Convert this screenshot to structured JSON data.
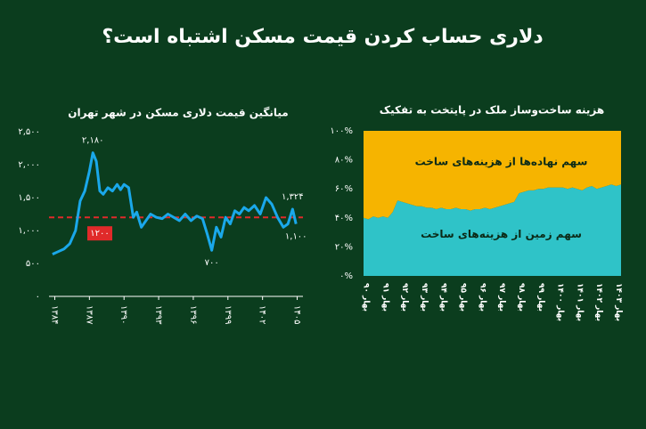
{
  "title": "دلاری حساب کردن قیمت مسکن اشتباه است؟",
  "chart_data": [
    {
      "type": "line",
      "title": "میانگین قیمت دلاری مسکن در شهر تهران",
      "x": [
        1383.8,
        1384.3,
        1384.8,
        1385.3,
        1385.8,
        1386.2,
        1386.6,
        1387.0,
        1387.3,
        1387.6,
        1387.9,
        1388.2,
        1388.6,
        1389.0,
        1389.4,
        1389.7,
        1390.0,
        1390.4,
        1390.8,
        1391.1,
        1391.5,
        1391.9,
        1392.3,
        1392.8,
        1393.3,
        1393.8,
        1394.3,
        1394.8,
        1395.3,
        1395.8,
        1396.3,
        1396.8,
        1397.2,
        1397.6,
        1398.0,
        1398.4,
        1398.8,
        1399.2,
        1399.6,
        1400.0,
        1400.4,
        1400.8,
        1401.3,
        1401.8,
        1402.3,
        1402.8,
        1403.3,
        1403.8,
        1404.2,
        1404.6,
        1404.9
      ],
      "series": [
        {
          "color": "#1aa8ea",
          "values": [
            640,
            680,
            720,
            800,
            1000,
            1450,
            1600,
            1900,
            2180,
            2050,
            1600,
            1550,
            1650,
            1600,
            1700,
            1620,
            1700,
            1650,
            1200,
            1280,
            1050,
            1150,
            1250,
            1200,
            1180,
            1250,
            1200,
            1150,
            1250,
            1150,
            1220,
            1180,
            950,
            700,
            1050,
            900,
            1200,
            1100,
            1300,
            1250,
            1350,
            1300,
            1380,
            1250,
            1500,
            1400,
            1200,
            1050,
            1100,
            1324,
            1100
          ]
        }
      ],
      "xlim": [
        1383.5,
        1405.5
      ],
      "xticks": [
        {
          "value": 1384,
          "label": "۱۳۸۴"
        },
        {
          "value": 1387,
          "label": "۱۳۸۷"
        },
        {
          "value": 1390,
          "label": "۱۳۹۰"
        },
        {
          "value": 1393,
          "label": "۱۳۹۳"
        },
        {
          "value": 1396,
          "label": "۱۳۹۶"
        },
        {
          "value": 1399,
          "label": "۱۳۹۹"
        },
        {
          "value": 1402,
          "label": "۱۴۰۲"
        },
        {
          "value": 1405,
          "label": "۱۴۰۵"
        }
      ],
      "ylim": [
        0,
        2500
      ],
      "yticks": [
        {
          "value": 0,
          "label": "۰"
        },
        {
          "value": 500,
          "label": "۵۰۰"
        },
        {
          "value": 1000,
          "label": "۱,۰۰۰"
        },
        {
          "value": 1500,
          "label": "۱,۵۰۰"
        },
        {
          "value": 2000,
          "label": "۲,۰۰۰"
        },
        {
          "value": 2500,
          "label": "۲,۵۰۰"
        }
      ],
      "reference_line": {
        "value": 1200,
        "label": "۱۲۰۰",
        "color": "#e02a2a"
      },
      "annotations": [
        {
          "text": "۲,۱۸۰",
          "x": 1387.3,
          "y": 2180,
          "side": "above"
        },
        {
          "text": "۷۰۰",
          "x": 1397.6,
          "y": 700,
          "side": "below"
        },
        {
          "text": "۱,۳۲۴",
          "x": 1404.6,
          "y": 1324,
          "side": "above"
        },
        {
          "text": "۱,۱۰۰",
          "x": 1404.9,
          "y": 1100,
          "side": "below"
        }
      ]
    },
    {
      "type": "area",
      "stacked": true,
      "title": "هزینه ساخت‌وساز ملک در پایتخت به تفکیک",
      "categories": [
        "بهار ۹۰",
        null,
        null,
        null,
        "بهار ۹۱",
        null,
        null,
        null,
        "بهار ۹۲",
        null,
        null,
        null,
        "بهار ۹۳",
        null,
        null,
        null,
        "بهار ۹۴",
        null,
        null,
        null,
        "بهار ۹۵",
        null,
        null,
        null,
        "بهار ۹۶",
        null,
        null,
        null,
        "بهار ۹۷",
        null,
        null,
        null,
        "بهار ۹۸",
        null,
        null,
        null,
        "بهار ۹۹",
        null,
        null,
        null,
        "بهار ۱۴۰۰",
        null,
        null,
        null,
        "بهار ۱۴۰۱",
        null,
        null,
        null,
        "بهار ۱۴۰۲",
        null,
        null,
        null,
        "بهار ۱۴۰۳",
        null
      ],
      "series": [
        {
          "name": "سهم زمین از هزینه‌های ساخت",
          "color": "#2fc3c8",
          "values": [
            40,
            39,
            41,
            40,
            41,
            40,
            44,
            52,
            51,
            50,
            49,
            48,
            48,
            47,
            47,
            46,
            47,
            46,
            46,
            47,
            46,
            46,
            45,
            46,
            46,
            47,
            46,
            47,
            48,
            49,
            50,
            51,
            57,
            58,
            59,
            59,
            60,
            60,
            61,
            61,
            61,
            61,
            60,
            61,
            60,
            59,
            61,
            62,
            60,
            61,
            62,
            63,
            62,
            63
          ]
        },
        {
          "name": "سهم نهاده‌ها از هزینه‌های ساخت",
          "color": "#f6b400",
          "values": [
            60,
            61,
            59,
            60,
            59,
            60,
            56,
            48,
            49,
            50,
            51,
            52,
            52,
            53,
            53,
            54,
            53,
            54,
            54,
            53,
            54,
            54,
            55,
            54,
            54,
            53,
            54,
            53,
            52,
            51,
            50,
            49,
            43,
            42,
            41,
            41,
            40,
            40,
            39,
            39,
            39,
            39,
            40,
            39,
            40,
            41,
            39,
            38,
            40,
            39,
            38,
            37,
            38,
            37
          ]
        }
      ],
      "ylim": [
        0,
        100
      ],
      "yticks": [
        {
          "value": 0,
          "label": "۰%"
        },
        {
          "value": 20,
          "label": "۲۰%"
        },
        {
          "value": 40,
          "label": "۴۰%"
        },
        {
          "value": 60,
          "label": "۶۰%"
        },
        {
          "value": 80,
          "label": "۸۰%"
        },
        {
          "value": 100,
          "label": "۱۰۰%"
        }
      ]
    }
  ]
}
